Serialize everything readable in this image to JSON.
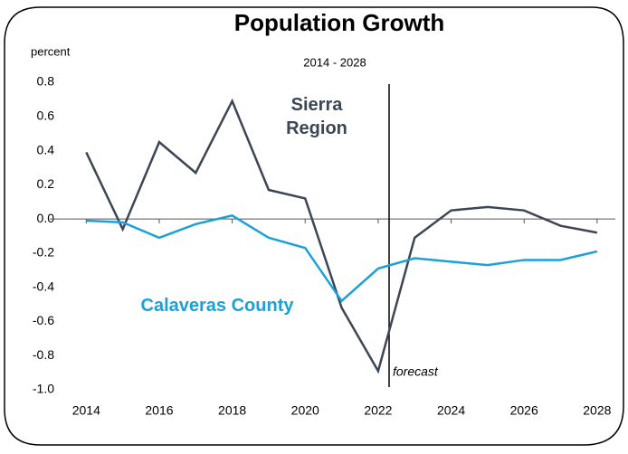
{
  "chart_data": {
    "type": "line",
    "title": "Population Growth",
    "subtitle": "2014 - 2028",
    "y_label": "percent",
    "x": [
      2014,
      2015,
      2016,
      2017,
      2018,
      2019,
      2020,
      2021,
      2022,
      2023,
      2024,
      2025,
      2026,
      2027,
      2028
    ],
    "series": [
      {
        "name": "Sierra Region",
        "color": "#3d4654",
        "values": [
          0.39,
          -0.06,
          0.45,
          0.27,
          0.69,
          0.17,
          0.12,
          -0.52,
          -0.89,
          -0.11,
          0.05,
          0.07,
          0.05,
          -0.04,
          -0.08
        ]
      },
      {
        "name": "Calaveras County",
        "color": "#1ba1d8",
        "values": [
          -0.01,
          -0.02,
          -0.11,
          -0.03,
          0.02,
          -0.11,
          -0.17,
          -0.48,
          -0.29,
          -0.23,
          -0.25,
          -0.27,
          -0.24,
          -0.24,
          -0.19
        ]
      }
    ],
    "xlim": [
      2013,
      2028.5
    ],
    "xticks": [
      2014,
      2016,
      2018,
      2020,
      2022,
      2024,
      2026,
      2028
    ],
    "ylim": [
      -1.0,
      0.8
    ],
    "yticks": [
      0.8,
      0.6,
      0.4,
      0.2,
      {
        "value": 0,
        "label": "0.0"
      },
      -0.2,
      -0.4,
      -0.6,
      -0.8,
      {
        "value": -1,
        "label": "-1.0"
      }
    ],
    "grid": false,
    "forecast": {
      "x": 2022.3,
      "label": "forecast"
    }
  }
}
